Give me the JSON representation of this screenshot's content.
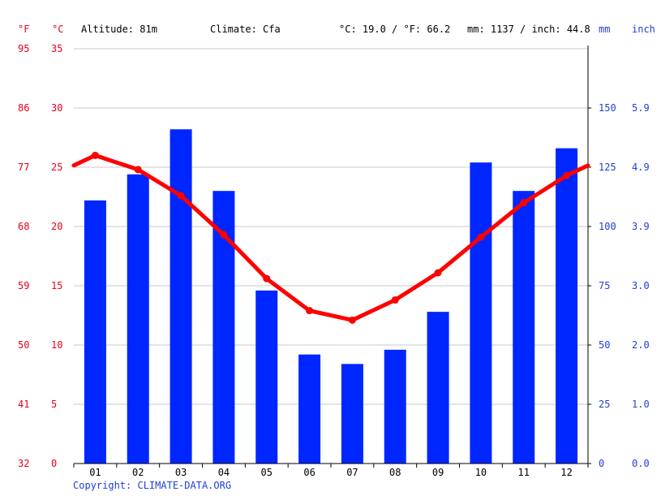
{
  "header": {
    "unit_f": "°F",
    "unit_c": "°C",
    "altitude": "Altitude: 81m",
    "climate": "Climate: Cfa",
    "temp_avg": "°C: 19.0 / °F: 66.2",
    "precip_total": "mm: 1137 / inch: 44.8",
    "unit_mm": "mm",
    "unit_inch": "inch"
  },
  "footer": {
    "copyright": "Copyright: CLIMATE-DATA.ORG"
  },
  "colors": {
    "temperature": "#ff0000",
    "precipitation": "#0026ff",
    "temp_axis": "#e8001c",
    "precip_axis": "#1f3fd6",
    "grid": "#c8c8c8"
  },
  "chart_data": {
    "type": "bar+line",
    "categories": [
      "01",
      "02",
      "03",
      "04",
      "05",
      "06",
      "07",
      "08",
      "09",
      "10",
      "11",
      "12"
    ],
    "series": [
      {
        "name": "mm",
        "type": "bar",
        "axis": "right",
        "values": [
          111,
          122,
          141,
          115,
          73,
          46,
          42,
          48,
          64,
          127,
          115,
          133
        ]
      },
      {
        "name": "°C",
        "type": "line",
        "axis": "left",
        "values": [
          26.0,
          24.8,
          22.6,
          19.3,
          15.6,
          12.9,
          12.1,
          13.8,
          16.1,
          19.1,
          22.0,
          24.3
        ]
      }
    ],
    "left_axis": {
      "label": "°C",
      "ylim": [
        0,
        35
      ],
      "ticks": [
        "0",
        "5",
        "10",
        "15",
        "20",
        "25",
        "30",
        "35"
      ]
    },
    "left_axis_f": {
      "label": "°F",
      "ticks": [
        "32",
        "41",
        "50",
        "59",
        "68",
        "77",
        "86",
        "95"
      ]
    },
    "right_axis_mm": {
      "label": "mm",
      "ylim": [
        0,
        175
      ],
      "ticks": [
        "0",
        "25",
        "50",
        "75",
        "100",
        "125",
        "150"
      ]
    },
    "right_axis_inch": {
      "label": "inch",
      "ticks": [
        "0.0",
        "1.0",
        "2.0",
        "3.0",
        "3.9",
        "4.9",
        "5.9"
      ]
    },
    "grid": true
  }
}
